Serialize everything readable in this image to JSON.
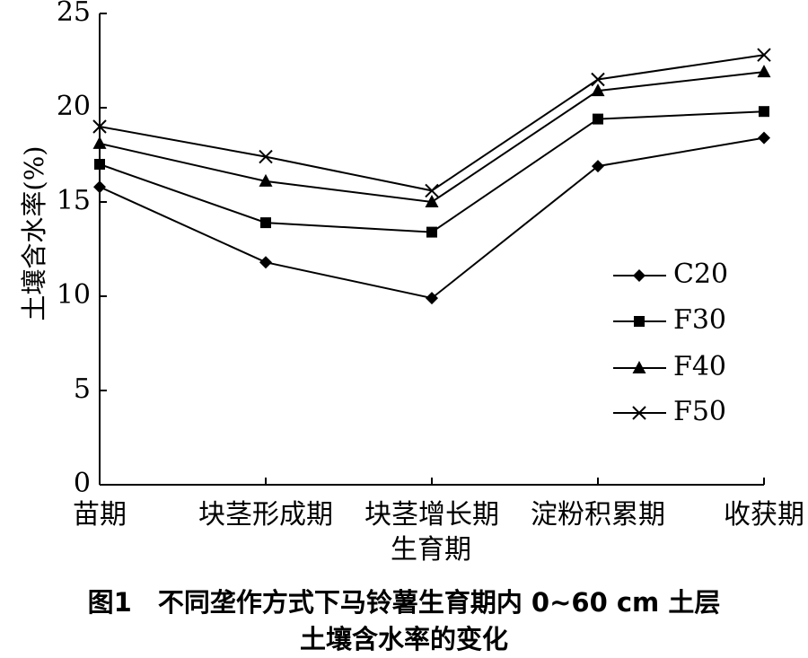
{
  "chart_data": {
    "type": "line",
    "categories": [
      "苗期",
      "块茎形成期",
      "块茎增长期",
      "淀粉积累期",
      "收获期"
    ],
    "series": [
      {
        "name": "C20",
        "marker": "diamond",
        "values": [
          15.8,
          11.8,
          9.9,
          16.9,
          18.4
        ]
      },
      {
        "name": "F30",
        "marker": "square",
        "values": [
          17.0,
          13.9,
          13.4,
          19.4,
          19.8
        ]
      },
      {
        "name": "F40",
        "marker": "triangle",
        "values": [
          18.1,
          16.1,
          15.0,
          20.9,
          21.9
        ]
      },
      {
        "name": "F50",
        "marker": "x",
        "values": [
          19.0,
          17.4,
          15.6,
          21.5,
          22.8
        ]
      }
    ],
    "xlabel": "生育期",
    "ylabel": "土壤含水率(%)",
    "ylim": [
      0,
      25
    ],
    "yticks": [
      "0",
      "5",
      "10",
      "15",
      "20",
      "25"
    ],
    "grid": false,
    "legend_position": "right-middle",
    "line_color": "#000000"
  },
  "caption": {
    "line1": "图1　不同垄作方式下马铃薯生育期内 0~60 cm 土层",
    "line2": "土壤含水率的变化"
  }
}
